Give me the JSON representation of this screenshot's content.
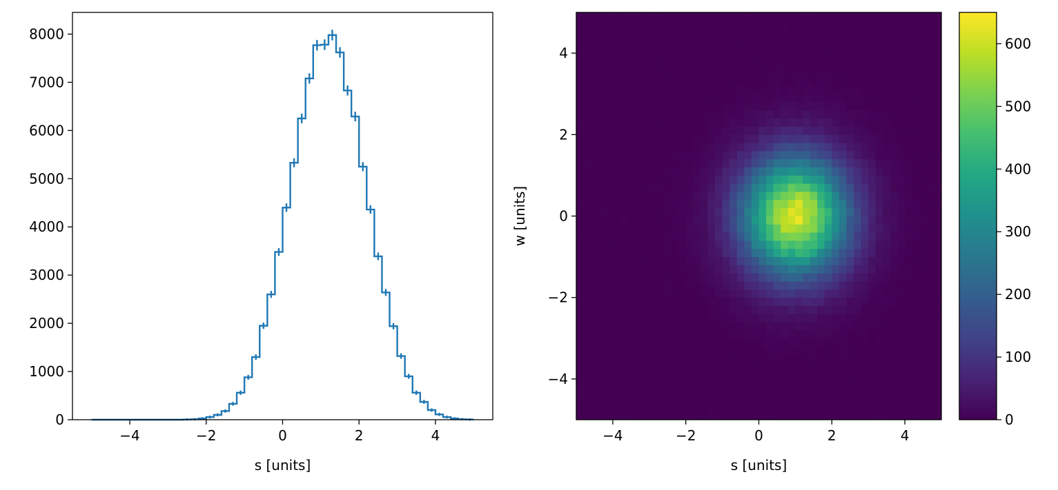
{
  "colors": {
    "hist_line": "#1f77b4",
    "axes": "#000000",
    "background": "#ffffff",
    "colormap": "viridis"
  },
  "chart_data": [
    {
      "type": "line",
      "subtype": "step-histogram-with-errorbars",
      "title": "",
      "xlabel": "s [units]",
      "ylabel": "",
      "xlim": [
        -5.5,
        5.5
      ],
      "ylim": [
        0,
        8450
      ],
      "xticks": [
        -4,
        -2,
        0,
        2,
        4
      ],
      "xtick_labels": [
        "−4",
        "−2",
        "0",
        "2",
        "4"
      ],
      "yticks": [
        0,
        1000,
        2000,
        3000,
        4000,
        5000,
        6000,
        7000,
        8000
      ],
      "ytick_labels": [
        "0",
        "1000",
        "2000",
        "3000",
        "4000",
        "5000",
        "6000",
        "7000",
        "8000"
      ],
      "bin_range": [
        -5,
        5
      ],
      "bin_width": 0.2,
      "values": [
        0,
        0,
        0,
        0,
        0,
        0,
        0,
        0,
        0,
        0,
        0,
        0,
        5,
        10,
        25,
        55,
        100,
        180,
        330,
        560,
        880,
        1300,
        1950,
        2600,
        3480,
        4400,
        5330,
        6250,
        7080,
        7770,
        7780,
        7980,
        7620,
        6830,
        6290,
        5250,
        4360,
        3390,
        2640,
        1940,
        1320,
        900,
        560,
        370,
        200,
        110,
        55,
        25,
        10,
        5
      ],
      "grid": false
    },
    {
      "type": "heatmap",
      "title": "",
      "xlabel": "s [units]",
      "ylabel": "w [units]",
      "xlim": [
        -5,
        5
      ],
      "ylim": [
        -5,
        5
      ],
      "xticks": [
        -4,
        -2,
        0,
        2,
        4
      ],
      "xtick_labels": [
        "−4",
        "−2",
        "0",
        "2",
        "4"
      ],
      "yticks": [
        -4,
        -2,
        0,
        2,
        4
      ],
      "ytick_labels": [
        "−4",
        "−2",
        "0",
        "2",
        "4"
      ],
      "bins": [
        50,
        50
      ],
      "center": [
        1.0,
        0.0
      ],
      "sigma": [
        1.0,
        1.0
      ],
      "peak_count": 650,
      "colorbar": {
        "vmin": 0,
        "vmax": 650,
        "ticks": [
          0,
          100,
          200,
          300,
          400,
          500,
          600
        ],
        "tick_labels": [
          "0",
          "100",
          "200",
          "300",
          "400",
          "500",
          "600"
        ]
      },
      "grid": false
    }
  ]
}
